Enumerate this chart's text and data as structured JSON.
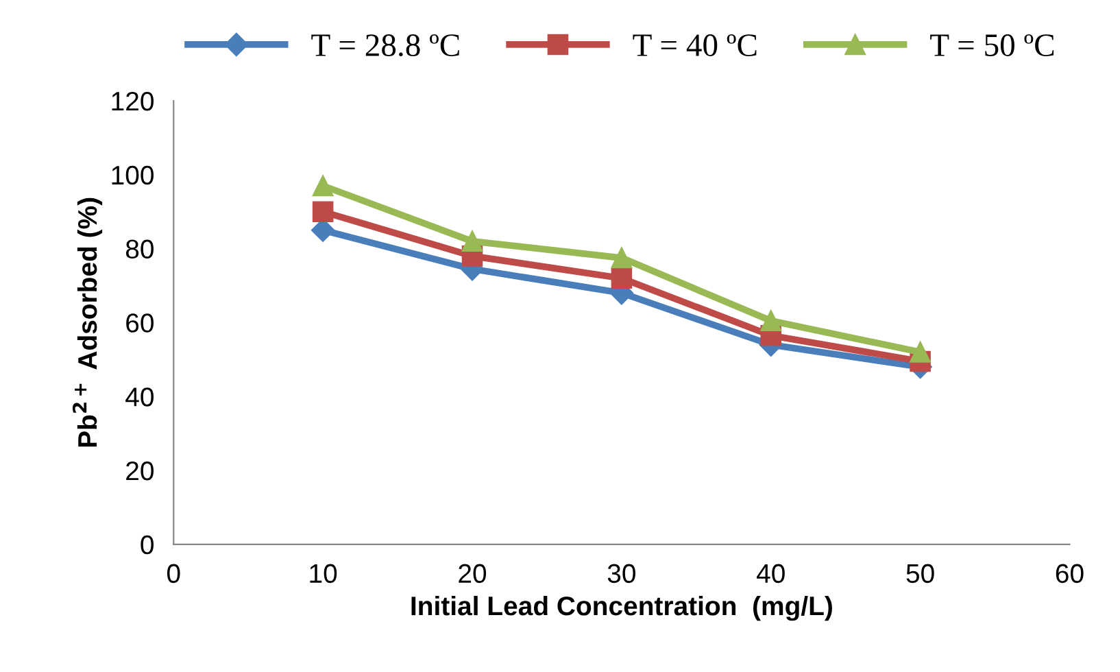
{
  "chart_data": {
    "type": "line",
    "xlabel": "Initial Lead Concentration  (mg/L)",
    "ylabel": "Pb$^{2+}$ Adsorbed (%)",
    "x": [
      10,
      20,
      30,
      40,
      50
    ],
    "series": [
      {
        "name": "T = 28.8 ºC",
        "color": "#4a7ebb",
        "marker": "diamond",
        "values": [
          85,
          74.5,
          68,
          54,
          48
        ]
      },
      {
        "name": "T = 40 ºC",
        "color": "#be4b48",
        "marker": "square",
        "values": [
          90,
          78,
          72,
          56.5,
          49.5
        ]
      },
      {
        "name": "T = 50 ºC",
        "color": "#98b954",
        "marker": "triangle",
        "values": [
          97,
          82,
          77.5,
          60.5,
          52
        ]
      }
    ],
    "xlim": [
      0,
      60
    ],
    "xticks": [
      0,
      10,
      20,
      30,
      40,
      50,
      60
    ],
    "ylim": [
      0,
      120
    ],
    "yticks": [
      0,
      20,
      40,
      60,
      80,
      100,
      120
    ],
    "grid": false,
    "legend": "top",
    "line_style": "solid"
  }
}
